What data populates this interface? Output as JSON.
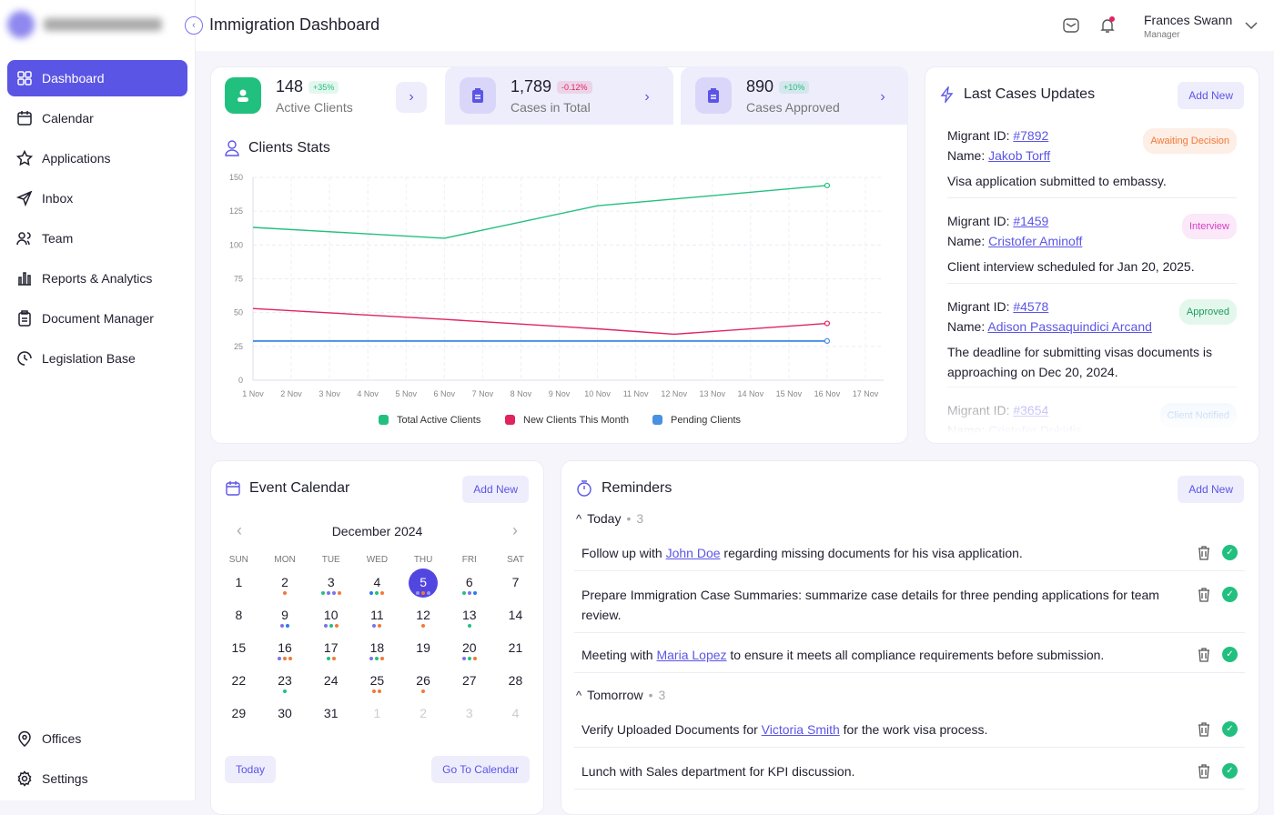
{
  "app": {
    "title": "Immigration Dashboard"
  },
  "user": {
    "name": "Frances Swann",
    "role": "Manager"
  },
  "sidebar": {
    "items": [
      {
        "label": "Dashboard",
        "icon": "grid-icon",
        "active": true
      },
      {
        "label": "Calendar",
        "icon": "calendar-icon"
      },
      {
        "label": "Applications",
        "icon": "star-icon"
      },
      {
        "label": "Inbox",
        "icon": "send-icon"
      },
      {
        "label": "Team",
        "icon": "users-icon"
      },
      {
        "label": "Reports & Analytics",
        "icon": "bar-chart-icon"
      },
      {
        "label": "Document Manager",
        "icon": "clipboard-icon"
      },
      {
        "label": "Legislation Base",
        "icon": "book-icon"
      }
    ],
    "bottom": [
      {
        "label": "Offices",
        "icon": "location-icon"
      },
      {
        "label": "Settings",
        "icon": "gear-icon"
      }
    ]
  },
  "stats": [
    {
      "value": "148",
      "change": "+35%",
      "label": "Active Clients",
      "color": "#22c07f"
    },
    {
      "value": "1,789",
      "change": "-0.12%",
      "label": "Cases in Total",
      "color": "#e0245e"
    },
    {
      "value": "890",
      "change": "+10%",
      "label": "Cases Approved",
      "color": "#22c07f"
    }
  ],
  "clients_stats": {
    "title": "Clients Stats"
  },
  "chart_data": {
    "type": "line",
    "title": "Clients Stats",
    "categories": [
      "1 Nov",
      "2 Nov",
      "3 Nov",
      "4 Nov",
      "5 Nov",
      "6 Nov",
      "7 Nov",
      "8 Nov",
      "9 Nov",
      "10 Nov",
      "11 Nov",
      "12 Nov",
      "13 Nov",
      "14 Nov",
      "15 Nov",
      "16 Nov",
      "17 Nov"
    ],
    "ylim": [
      0,
      150
    ],
    "yticks": [
      0,
      25,
      50,
      75,
      100,
      125,
      150
    ],
    "series": [
      {
        "name": "Total Active Clients",
        "color": "#22c07f",
        "points": [
          [
            0,
            113
          ],
          [
            5,
            105
          ],
          [
            9,
            129
          ],
          [
            11,
            134
          ],
          [
            15,
            144
          ]
        ]
      },
      {
        "name": "New Clients This Month",
        "color": "#e0245e",
        "points": [
          [
            0,
            53
          ],
          [
            5,
            45
          ],
          [
            9,
            38
          ],
          [
            11,
            34
          ],
          [
            15,
            42
          ]
        ]
      },
      {
        "name": "Pending Clients",
        "color": "#4a90e2",
        "points": [
          [
            0,
            29
          ],
          [
            15,
            29
          ]
        ]
      }
    ],
    "legend": "bottom"
  },
  "updates": {
    "title": "Last Cases Updates",
    "add": "Add New",
    "id_label": "Migrant ID:",
    "name_label": "Name:",
    "items": [
      {
        "id": "#7892",
        "name": "Jakob Torff",
        "status": "Awaiting Decision",
        "text": "Visa application submitted to embassy."
      },
      {
        "id": "#1459",
        "name": "Cristofer Aminoff",
        "status": "Interview",
        "text": "Client interview scheduled for Jan 20, 2025."
      },
      {
        "id": "#4578",
        "name": "Adison Passaquindici Arcand",
        "status": "Approved",
        "text": "The deadline for submitting visas documents is approaching on Dec 20, 2024."
      },
      {
        "id": "#3654",
        "name": "Cristofer Dokidis",
        "status": "Client Notified",
        "text": ""
      }
    ]
  },
  "calendar": {
    "title": "Event Calendar",
    "add": "Add New",
    "month": "December 2024",
    "today_btn": "Today",
    "goto_btn": "Go To Calendar",
    "dow": [
      "SUN",
      "MON",
      "TUE",
      "WED",
      "THU",
      "FRI",
      "SAT"
    ],
    "selected": "5",
    "weeks": [
      [
        [
          "1",
          ""
        ],
        [
          "2",
          "o"
        ],
        [
          "3",
          "gppo"
        ],
        [
          "4",
          "bgo"
        ],
        [
          "5",
          "pob"
        ],
        [
          "6",
          "gpb"
        ],
        [
          "7",
          ""
        ]
      ],
      [
        [
          "8",
          ""
        ],
        [
          "9",
          "pb"
        ],
        [
          "10",
          "pgo"
        ],
        [
          "11",
          "po"
        ],
        [
          "12",
          "o"
        ],
        [
          "13",
          "g"
        ],
        [
          "14",
          ""
        ]
      ],
      [
        [
          "15",
          ""
        ],
        [
          "16",
          "poo"
        ],
        [
          "17",
          "go"
        ],
        [
          "18",
          "pgo"
        ],
        [
          "19",
          ""
        ],
        [
          "20",
          "pgo"
        ],
        [
          "21",
          ""
        ]
      ],
      [
        [
          "22",
          ""
        ],
        [
          "23",
          "g"
        ],
        [
          "24",
          ""
        ],
        [
          "25",
          "oo"
        ],
        [
          "26",
          "o"
        ],
        [
          "27",
          ""
        ],
        [
          "28",
          ""
        ]
      ],
      [
        [
          "29",
          ""
        ],
        [
          "30",
          ""
        ],
        [
          "31",
          ""
        ],
        [
          "1",
          "x"
        ],
        [
          "2",
          "x"
        ],
        [
          "3",
          "x"
        ],
        [
          "4",
          "x"
        ]
      ]
    ]
  },
  "reminders": {
    "title": "Reminders",
    "add": "Add New",
    "groups": [
      {
        "label": "Today",
        "count": "3"
      },
      {
        "label": "Tomorrow",
        "count": "3"
      }
    ],
    "items": [
      {
        "pre": "Follow up with ",
        "link": "John Doe",
        "post": " regarding missing documents for his visa application."
      },
      {
        "pre": "Prepare Immigration Case Summaries: summarize case details for three pending applications for team review.",
        "link": "",
        "post": ""
      },
      {
        "pre": "Meeting with ",
        "link": "Maria Lopez",
        "post": " to ensure it meets all compliance requirements before submission."
      },
      {
        "pre": "Verify Uploaded Documents for ",
        "link": "Victoria Smith",
        "post": " for the work visa process."
      },
      {
        "pre": "Lunch with Sales department for KPI discussion.",
        "link": "",
        "post": ""
      }
    ]
  }
}
